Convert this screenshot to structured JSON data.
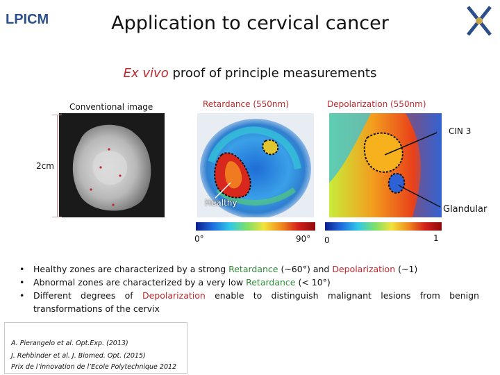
{
  "slide": {
    "logo_left_text": "LPICM",
    "title": "Application to cervical cancer",
    "subtitle": {
      "italic_part": "Ex vivo",
      "rest": " proof of principle measurements"
    }
  },
  "panels": {
    "conventional_label": "Conventional image",
    "retardance_label": "Retardance (550nm)",
    "depolarization_label": "Depolarization (550nm)",
    "scale_label": "2cm",
    "healthy_label": "Healthy",
    "cin3_label": "CIN 3",
    "glandular_label": "Glandular"
  },
  "colorbars": {
    "retardance": {
      "min_label": "0°",
      "max_label": "90°"
    },
    "depolarization": {
      "min_label": "0",
      "max_label": "1"
    }
  },
  "bullets": [
    {
      "parts": [
        {
          "text": "Healthy zones are characterized by a strong ",
          "style": "plain"
        },
        {
          "text": "Retardance",
          "style": "green"
        },
        {
          "text": " (~60°) and ",
          "style": "plain"
        },
        {
          "text": "Depolarization",
          "style": "red"
        },
        {
          "text": " (~1)",
          "style": "plain"
        }
      ]
    },
    {
      "parts": [
        {
          "text": "Abnormal zones are characterized by a very low ",
          "style": "plain"
        },
        {
          "text": "Retardance",
          "style": "green"
        },
        {
          "text": " (< 10°)",
          "style": "plain"
        }
      ]
    },
    {
      "parts": [
        {
          "text": "Different degrees of ",
          "style": "plain"
        },
        {
          "text": "Depolarization",
          "style": "red"
        },
        {
          "text": " enable to distinguish malignant lesions from benign transformations of the cervix",
          "style": "plain"
        }
      ]
    }
  ],
  "references": [
    "A. Pierangelo et al. Opt.Exp. (2013)",
    "J. Rehbinder et al. J. Biomed. Opt. (2015)",
    "Prix de l’innovation de l’Ecole Polytechnique 2012"
  ],
  "colors": {
    "accent_red": "#c0272d",
    "accent_green": "#2e8b3a",
    "logo_blue": "#2b4f8a"
  }
}
